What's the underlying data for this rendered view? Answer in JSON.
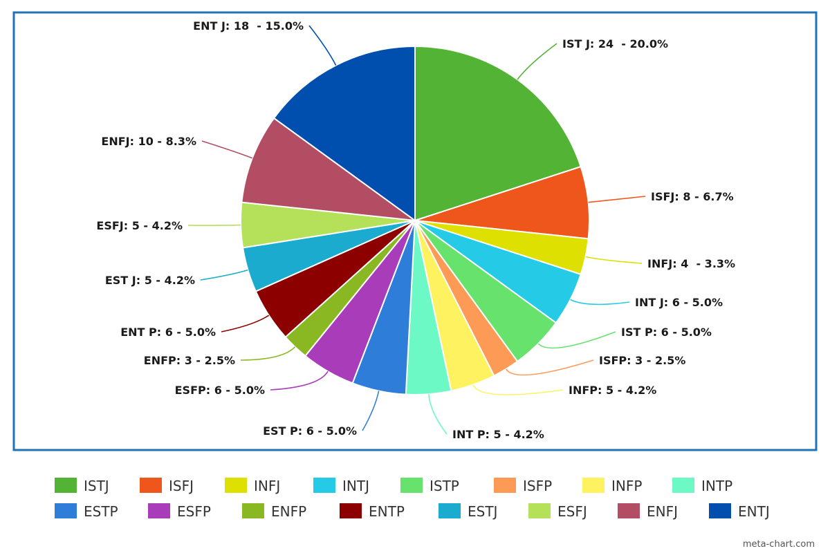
{
  "chart_data": {
    "type": "pie",
    "title": "",
    "legend_position": "bottom",
    "start_angle_deg": 0,
    "direction": "clockwise",
    "border_color": "#1f73b7",
    "slices": [
      {
        "name": "ISTJ",
        "value": 24,
        "percent": 20.0,
        "label": "IST J: 24  - 20.0%",
        "color": "#52b334"
      },
      {
        "name": "ISFJ",
        "value": 8,
        "percent": 6.7,
        "label": "ISFJ: 8 - 6.7%",
        "color": "#ef561c"
      },
      {
        "name": "INFJ",
        "value": 4,
        "percent": 3.3,
        "label": "INFJ: 4  - 3.3%",
        "color": "#dde000"
      },
      {
        "name": "INTJ",
        "value": 6,
        "percent": 5.0,
        "label": "INT J: 6 - 5.0%",
        "color": "#25cbe6"
      },
      {
        "name": "ISTP",
        "value": 6,
        "percent": 5.0,
        "label": "IST P: 6 - 5.0%",
        "color": "#67e36d"
      },
      {
        "name": "ISFP",
        "value": 3,
        "percent": 2.5,
        "label": "ISFP: 3 - 2.5%",
        "color": "#fd9a55"
      },
      {
        "name": "INFP",
        "value": 5,
        "percent": 4.2,
        "label": "INFP: 5 - 4.2%",
        "color": "#fef261"
      },
      {
        "name": "INTP",
        "value": 5,
        "percent": 4.2,
        "label": "INT P: 5 - 4.2%",
        "color": "#6cf9c6"
      },
      {
        "name": "ESTP",
        "value": 6,
        "percent": 5.0,
        "label": "EST P: 6 - 5.0%",
        "color": "#2e7ed9"
      },
      {
        "name": "ESFP",
        "value": 6,
        "percent": 5.0,
        "label": "ESFP: 6 - 5.0%",
        "color": "#a93db9"
      },
      {
        "name": "ENFP",
        "value": 3,
        "percent": 2.5,
        "label": "ENFP: 3 - 2.5%",
        "color": "#8ab823"
      },
      {
        "name": "ENTP",
        "value": 6,
        "percent": 5.0,
        "label": "ENT P: 6 - 5.0%",
        "color": "#8c0000"
      },
      {
        "name": "ESTJ",
        "value": 5,
        "percent": 4.2,
        "label": "EST J: 5 - 4.2%",
        "color": "#1aabcf"
      },
      {
        "name": "ESFJ",
        "value": 5,
        "percent": 4.2,
        "label": "ESFJ: 5 - 4.2%",
        "color": "#b5e05a"
      },
      {
        "name": "ENFJ",
        "value": 10,
        "percent": 8.3,
        "label": "ENFJ: 10 - 8.3%",
        "color": "#b34d63"
      },
      {
        "name": "ENTJ",
        "value": 18,
        "percent": 15.0,
        "label": "ENT J: 18  - 15.0%",
        "color": "#004fae"
      }
    ]
  },
  "watermark": "meta-chart.com"
}
